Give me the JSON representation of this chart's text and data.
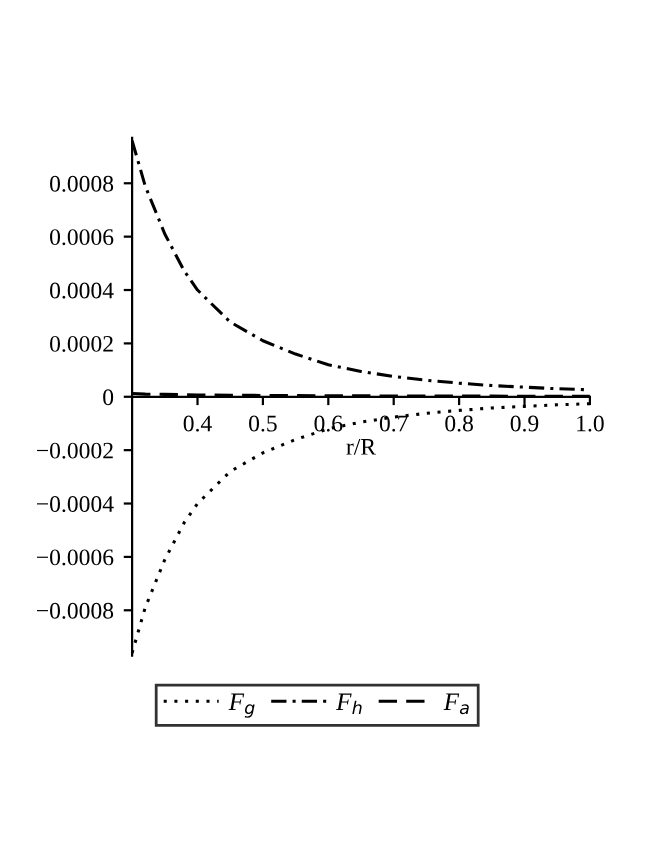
{
  "chart_data": {
    "type": "line",
    "xlabel": "r/R",
    "x": [
      0.3,
      0.32,
      0.35,
      0.38,
      0.4,
      0.45,
      0.5,
      0.55,
      0.6,
      0.65,
      0.7,
      0.75,
      0.8,
      0.85,
      0.9,
      0.95,
      1.0
    ],
    "series": [
      {
        "name": "F$_{g}$",
        "color": "#000000",
        "line_style": "dotted",
        "values": [
          -0.00096,
          -0.00079,
          -0.00061,
          -0.00047,
          -0.0004,
          -0.00028,
          -0.00021,
          -0.00016,
          -0.00012,
          -9.5e-05,
          -7.6e-05,
          -6.2e-05,
          -5.1e-05,
          -4.2e-05,
          -3.6e-05,
          -3e-05,
          -2.6e-05
        ]
      },
      {
        "name": "F$_{h}$",
        "color": "#000000",
        "line_style": "dashdot",
        "values": [
          0.00096,
          0.00079,
          0.00061,
          0.00047,
          0.0004,
          0.00028,
          0.00021,
          0.00016,
          0.00012,
          9.5e-05,
          7.6e-05,
          6.2e-05,
          5.1e-05,
          4.2e-05,
          3.6e-05,
          3e-05,
          2.6e-05
        ]
      },
      {
        "name": "F$_{a}$",
        "color": "#000000",
        "line_style": "dashed",
        "values": [
          1.2e-05,
          1e-05,
          9e-06,
          8e-06,
          7e-06,
          6e-06,
          5e-06,
          4.5e-06,
          4e-06,
          3.5e-06,
          3e-06,
          3e-06,
          2.5e-06,
          2.5e-06,
          2e-06,
          2e-06,
          2e-06
        ]
      }
    ],
    "xlim": [
      0.3,
      1.0
    ],
    "ylim": [
      -0.00097,
      0.00097
    ],
    "xticks": [
      0.4,
      0.5,
      0.6,
      0.7,
      0.8,
      0.9,
      {
        "value": 1.0,
        "label": "1.0"
      }
    ],
    "yticks": [
      -0.0008,
      -0.0006,
      -0.0004,
      -0.0002,
      0,
      0.0002,
      0.0004,
      0.0006,
      0.0008
    ],
    "legend": "bottom",
    "grid": false
  }
}
